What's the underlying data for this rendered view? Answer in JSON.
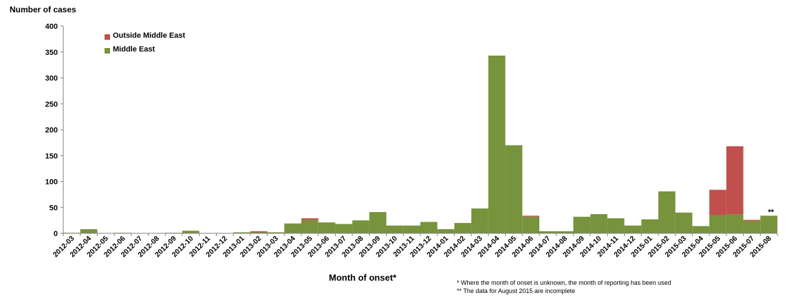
{
  "chart_data": {
    "type": "bar",
    "stacked": true,
    "ylabel": "Number of cases",
    "xlabel": "Month of onset*",
    "ylim": [
      0,
      400
    ],
    "yticks": [
      0,
      50,
      100,
      150,
      200,
      250,
      300,
      350,
      400
    ],
    "grid": false,
    "legend_position": "top-left",
    "categories": [
      "2012-03",
      "2012-04",
      "2012-05",
      "2012-06",
      "2012-07",
      "2012-08",
      "2012-09",
      "2012-10",
      "2012-11",
      "2012-12",
      "2013-01",
      "2013-02",
      "2013-03",
      "2013-04",
      "2013-05",
      "2013-06",
      "2013-07",
      "2013-08",
      "2013-09",
      "2013-10",
      "2013-11",
      "2013-12",
      "2014-01",
      "2014-02",
      "2014-03",
      "2014-04",
      "2014-05",
      "2014-06",
      "2014-07",
      "2014-08",
      "2014-09",
      "2014-10",
      "2014-11",
      "2014-12",
      "2015-01",
      "2015-02",
      "2015-03",
      "2015-04",
      "2015-05",
      "2015-06",
      "2015-07",
      "2015-08"
    ],
    "series": [
      {
        "name": "Middle East",
        "color": "#77933c",
        "values": [
          1,
          8,
          0,
          1,
          0,
          0,
          1,
          5,
          0,
          0,
          2,
          2,
          2,
          19,
          26,
          21,
          18,
          25,
          41,
          15,
          15,
          22,
          8,
          20,
          48,
          343,
          170,
          32,
          4,
          4,
          32,
          37,
          29,
          15,
          27,
          81,
          40,
          14,
          35,
          37,
          24,
          34
        ]
      },
      {
        "name": "Outside Middle East",
        "color": "#c0504d",
        "values": [
          0,
          0,
          0,
          0,
          0,
          0,
          0,
          0,
          0,
          0,
          0,
          2,
          0,
          0,
          3,
          0,
          0,
          0,
          0,
          0,
          0,
          0,
          0,
          0,
          0,
          0,
          0,
          2,
          0,
          0,
          0,
          0,
          0,
          0,
          0,
          0,
          0,
          0,
          49,
          131,
          2,
          0
        ]
      }
    ],
    "annotations": [
      {
        "category": "2015-08",
        "text": "**"
      }
    ]
  },
  "footnotes": [
    "* Where the month of onset is unknown, the month of reporting has been used",
    "** The data for August 2015 are incomplete"
  ]
}
